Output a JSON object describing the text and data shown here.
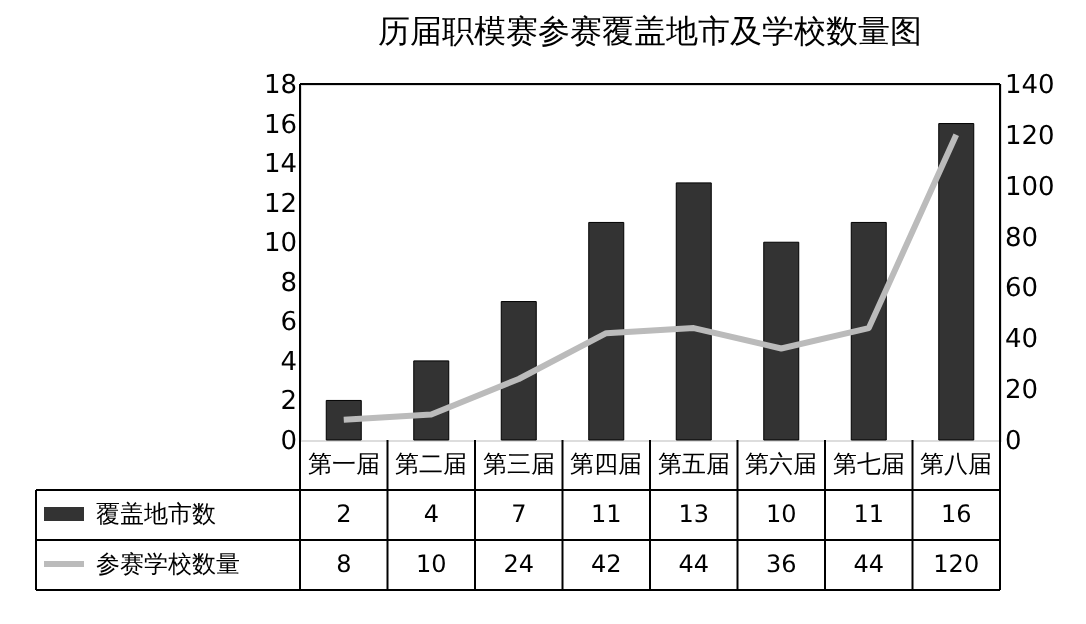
{
  "chart_data": {
    "type": "bar",
    "title": "历届职模赛参赛覆盖地市及学校数量图",
    "categories": [
      "第一届",
      "第二届",
      "第三届",
      "第四届",
      "第五届",
      "第六届",
      "第七届",
      "第八届"
    ],
    "series": [
      {
        "name": "覆盖地市数",
        "color": "#333333",
        "values": [
          2,
          4,
          7,
          11,
          13,
          10,
          11,
          16
        ]
      },
      {
        "name": "参赛学校数量",
        "color": "#bbbbbb",
        "type": "line",
        "axis": "y2",
        "values": [
          8,
          10,
          24,
          42,
          44,
          36,
          44,
          120
        ]
      }
    ],
    "ylim": [
      0,
      18
    ],
    "yticks": [
      0,
      2,
      4,
      6,
      8,
      10,
      12,
      14,
      16,
      18
    ],
    "y2lim": [
      0,
      140
    ],
    "y2ticks": [
      0,
      20,
      40,
      60,
      80,
      100,
      120,
      140
    ],
    "data_labels": true,
    "grid": false,
    "legend": "bottom",
    "marker": "none",
    "line_style": "solid"
  }
}
